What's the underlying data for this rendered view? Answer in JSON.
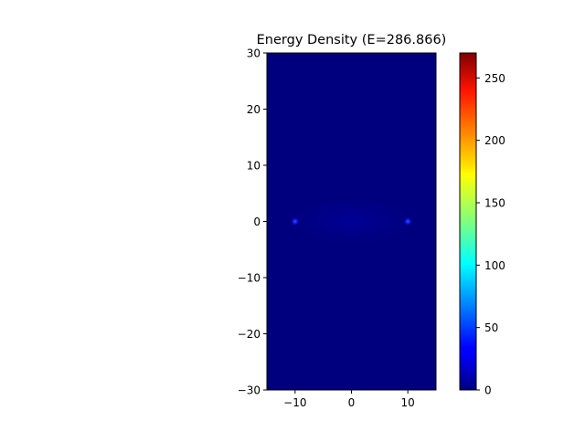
{
  "chart_data": {
    "type": "heatmap",
    "title": "Energy Density (E=286.866)",
    "xlabel": "",
    "ylabel": "",
    "xlim": [
      -15,
      15
    ],
    "ylim": [
      -30,
      30
    ],
    "x_ticks": [
      -10,
      0,
      10
    ],
    "x_tick_labels": [
      "−10",
      "0",
      "10"
    ],
    "y_ticks": [
      -30,
      -20,
      -10,
      0,
      10,
      20,
      30
    ],
    "y_tick_labels": [
      "−30",
      "−20",
      "−10",
      "0",
      "10",
      "20",
      "30"
    ],
    "colormap": "jet",
    "background_value": 0,
    "colorbar": {
      "range": [
        0,
        270
      ],
      "ticks": [
        0,
        50,
        100,
        150,
        200,
        250
      ],
      "tick_labels": [
        "0",
        "50",
        "100",
        "150",
        "200",
        "250"
      ]
    },
    "grid": false,
    "hotspots": [
      {
        "x": -10,
        "y": 0,
        "value": 45
      },
      {
        "x": 10,
        "y": 0,
        "value": 45
      }
    ],
    "faint_band": {
      "x_range": [
        -10,
        10
      ],
      "y_range": [
        -3,
        3
      ],
      "value": 4
    }
  }
}
